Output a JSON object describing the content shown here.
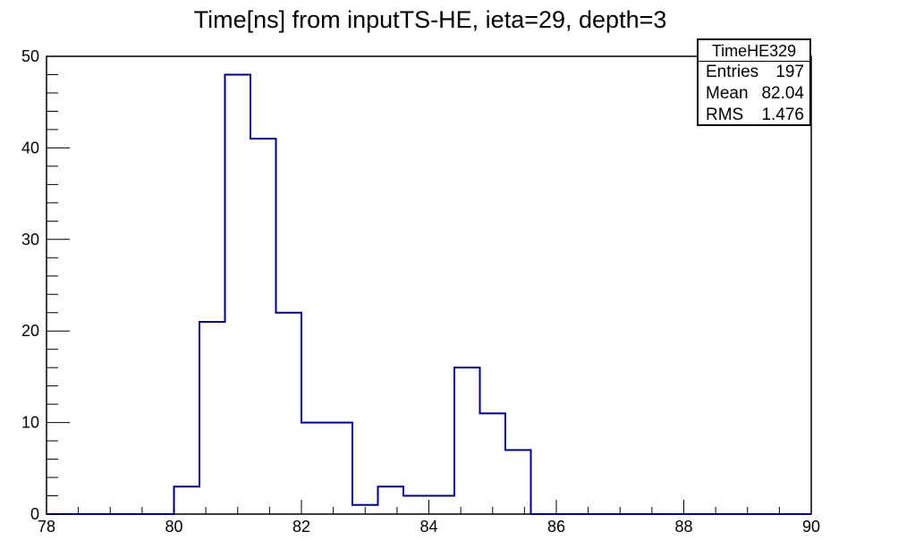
{
  "chart_data": {
    "type": "bar",
    "title": "Time[ns] from inputTS-HE, ieta=29, depth=3",
    "xlabel": "",
    "ylabel": "",
    "xlim": [
      78,
      90
    ],
    "ylim": [
      0,
      50
    ],
    "x_ticks": [
      78,
      80,
      82,
      84,
      86,
      88,
      90
    ],
    "y_ticks": [
      0,
      10,
      20,
      30,
      40,
      50
    ],
    "bin_edges": [
      80.0,
      80.4,
      80.8,
      81.2,
      81.6,
      82.0,
      82.4,
      82.8,
      83.2,
      83.6,
      84.0,
      84.4,
      84.8,
      85.2,
      85.6
    ],
    "values": [
      3,
      21,
      48,
      41,
      22,
      10,
      10,
      1,
      3,
      2,
      2,
      16,
      11,
      7
    ],
    "series": [
      {
        "name": "TimeHE329",
        "color": "#000080"
      }
    ],
    "legend": "top-right",
    "stats": {
      "title": "TimeHE329",
      "rows": [
        {
          "label": "Entries",
          "value": "197"
        },
        {
          "label": "Mean",
          "value": "82.04"
        },
        {
          "label": "RMS",
          "value": "1.476"
        }
      ]
    },
    "grid": false
  }
}
